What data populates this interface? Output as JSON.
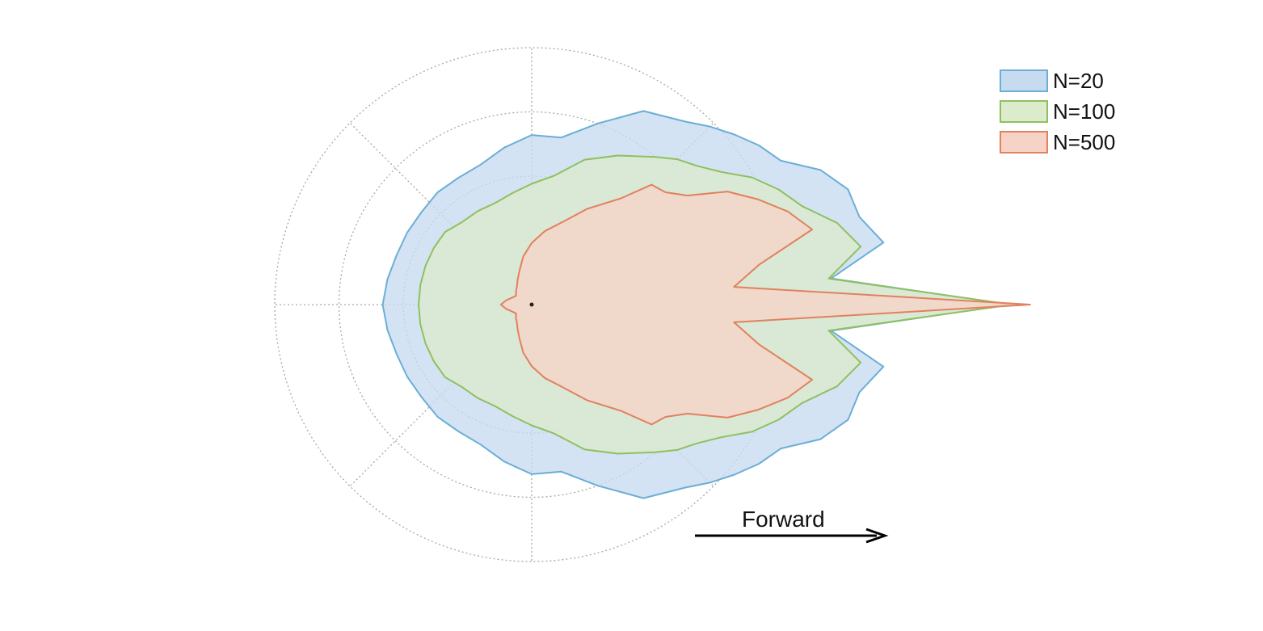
{
  "chart_data": {
    "type": "polar-area",
    "title": "",
    "direction_label": "Forward",
    "radial_grid_rings": 4,
    "angular_grid_step_deg": 45,
    "radial_range": [
      0,
      1
    ],
    "legend_placement": "top-right",
    "angles_deg": [
      0,
      5,
      10,
      15,
      20,
      25,
      30,
      35,
      40,
      45,
      50,
      60,
      70,
      80,
      90,
      100,
      110,
      120,
      130,
      140,
      150,
      160,
      170,
      180
    ],
    "series": [
      {
        "name": "N=20",
        "color": "#6baed6",
        "fill": "#c6dbef",
        "radius": [
          1.86,
          1.17,
          1.39,
          1.32,
          1.31,
          1.24,
          1.12,
          1.08,
          1.03,
          0.98,
          0.93,
          0.87,
          0.75,
          0.66,
          0.66,
          0.62,
          0.58,
          0.57,
          0.57,
          0.56,
          0.56,
          0.56,
          0.57,
          0.58
        ]
      },
      {
        "name": "N=100",
        "color": "#8fc05f",
        "fill": "#dcebcc",
        "radius": [
          1.87,
          1.16,
          1.3,
          1.23,
          1.12,
          1.06,
          0.99,
          0.9,
          0.84,
          0.8,
          0.75,
          0.67,
          0.6,
          0.51,
          0.47,
          0.44,
          0.42,
          0.42,
          0.42,
          0.44,
          0.44,
          0.44,
          0.44,
          0.44
        ]
      },
      {
        "name": "N=500",
        "color": "#e1815e",
        "fill": "#f6d3c6",
        "radius": [
          1.94,
          0.79,
          0.9,
          1.13,
          1.06,
          0.97,
          0.88,
          0.74,
          0.68,
          0.66,
          0.54,
          0.43,
          0.34,
          0.29,
          0.24,
          0.19,
          0.14,
          0.11,
          0.09,
          0.08,
          0.07,
          0.08,
          0.1,
          0.12
        ]
      }
    ]
  }
}
